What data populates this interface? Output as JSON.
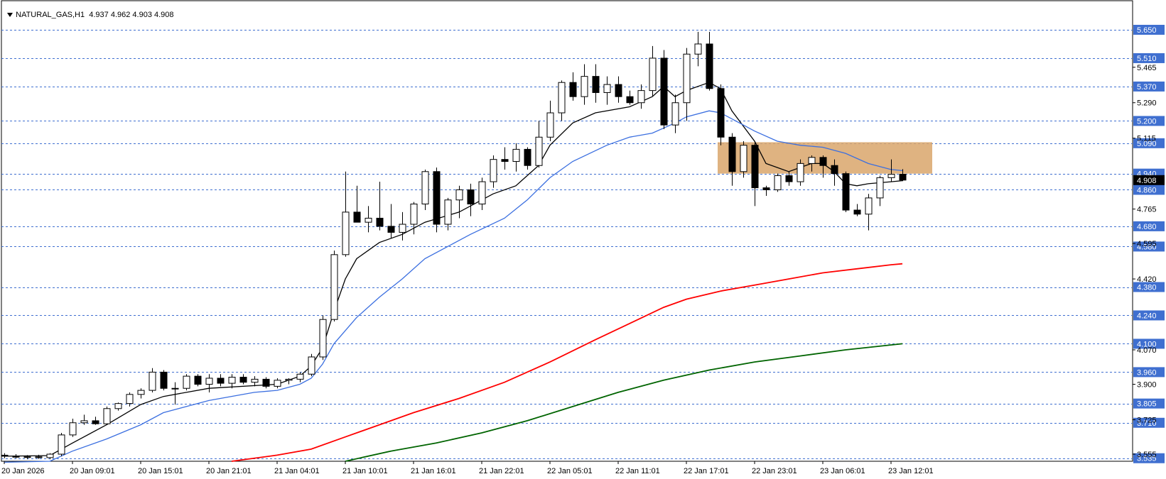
{
  "header": {
    "symbol": "NATURAL_GAS,H1",
    "ohlc": "4.937 4.962 4.903 4.908"
  },
  "colors": {
    "grid_line": "#3f6fd0",
    "label_bg": "#3f6fd0",
    "label_text": "#ffffff",
    "current_price_bg": "#000000",
    "ma_fast": "#000000",
    "ma_medium": "#3b6fe0",
    "ma_slow": "#ff0000",
    "ma_slower": "#006400",
    "zone_fill": "#d9a66b"
  },
  "chart_data": {
    "type": "candlestick",
    "symbol": "NATURAL_GAS,H1",
    "ylim": [
      3.52,
      5.72
    ],
    "price_levels": [
      5.65,
      5.51,
      5.37,
      5.2,
      5.09,
      4.94,
      4.86,
      4.68,
      4.58,
      4.38,
      4.24,
      4.1,
      3.96,
      3.805,
      3.71,
      3.535
    ],
    "price_level_labels": [
      "5.650",
      "5.510",
      "5.370",
      "5.200",
      "5.090",
      "4.940",
      "4.860",
      "4.680",
      "4.580",
      "4.380",
      "4.240",
      "4.100",
      "3.960",
      "3.805",
      "3.710",
      "3.535"
    ],
    "axis_ticks": [
      {
        "value": 5.465,
        "label": "5.465"
      },
      {
        "value": 5.29,
        "label": "5.290"
      },
      {
        "value": 5.115,
        "label": "5.115"
      },
      {
        "value": 4.765,
        "label": "4.765"
      },
      {
        "value": 4.595,
        "label": "4.595"
      },
      {
        "value": 4.42,
        "label": "4.420"
      },
      {
        "value": 4.07,
        "label": "4.070"
      },
      {
        "value": 3.9,
        "label": "3.900"
      },
      {
        "value": 3.725,
        "label": "3.725"
      },
      {
        "value": 3.555,
        "label": "3.555"
      }
    ],
    "current_price": {
      "value": 4.908,
      "label": "4.908"
    },
    "time_labels": [
      {
        "index": 0,
        "label": "20 Jan 2026"
      },
      {
        "index": 6,
        "label": "20 Jan 09:01"
      },
      {
        "index": 12,
        "label": "20 Jan 15:01"
      },
      {
        "index": 18,
        "label": "20 Jan 21:01"
      },
      {
        "index": 24,
        "label": "21 Jan 04:01"
      },
      {
        "index": 30,
        "label": "21 Jan 10:01"
      },
      {
        "index": 36,
        "label": "21 Jan 16:01"
      },
      {
        "index": 42,
        "label": "21 Jan 22:01"
      },
      {
        "index": 48,
        "label": "22 Jan 05:01"
      },
      {
        "index": 54,
        "label": "22 Jan 11:01"
      },
      {
        "index": 60,
        "label": "22 Jan 17:01"
      },
      {
        "index": 66,
        "label": "22 Jan 23:01"
      },
      {
        "index": 72,
        "label": "23 Jan 06:01"
      },
      {
        "index": 78,
        "label": "23 Jan 12:01"
      }
    ],
    "candles": [
      [
        3.55,
        3.56,
        3.535,
        3.545
      ],
      [
        3.545,
        3.555,
        3.535,
        3.54
      ],
      [
        3.54,
        3.55,
        3.53,
        3.542
      ],
      [
        3.542,
        3.552,
        3.532,
        3.538
      ],
      [
        3.538,
        3.56,
        3.53,
        3.555
      ],
      [
        3.555,
        3.66,
        3.545,
        3.65
      ],
      [
        3.65,
        3.73,
        3.64,
        3.71
      ],
      [
        3.71,
        3.75,
        3.7,
        3.72
      ],
      [
        3.72,
        3.74,
        3.7,
        3.705
      ],
      [
        3.705,
        3.79,
        3.7,
        3.78
      ],
      [
        3.78,
        3.81,
        3.77,
        3.805
      ],
      [
        3.805,
        3.86,
        3.79,
        3.85
      ],
      [
        3.85,
        3.88,
        3.83,
        3.87
      ],
      [
        3.87,
        3.98,
        3.86,
        3.96
      ],
      [
        3.96,
        3.97,
        3.87,
        3.88
      ],
      [
        3.88,
        3.91,
        3.8,
        3.88
      ],
      [
        3.88,
        3.95,
        3.87,
        3.94
      ],
      [
        3.94,
        3.95,
        3.89,
        3.9
      ],
      [
        3.9,
        3.95,
        3.86,
        3.93
      ],
      [
        3.93,
        3.95,
        3.89,
        3.905
      ],
      [
        3.905,
        3.95,
        3.88,
        3.935
      ],
      [
        3.935,
        3.95,
        3.9,
        3.91
      ],
      [
        3.91,
        3.94,
        3.89,
        3.925
      ],
      [
        3.925,
        3.935,
        3.88,
        3.89
      ],
      [
        3.89,
        3.93,
        3.88,
        3.92
      ],
      [
        3.92,
        3.93,
        3.9,
        3.925
      ],
      [
        3.925,
        3.96,
        3.91,
        3.95
      ],
      [
        3.95,
        4.05,
        3.94,
        4.035
      ],
      [
        4.035,
        4.24,
        4.02,
        4.22
      ],
      [
        4.22,
        4.56,
        4.21,
        4.54
      ],
      [
        4.54,
        4.95,
        4.53,
        4.75
      ],
      [
        4.75,
        4.88,
        4.7,
        4.7
      ],
      [
        4.7,
        4.78,
        4.65,
        4.72
      ],
      [
        4.72,
        4.9,
        4.66,
        4.68
      ],
      [
        4.68,
        4.79,
        4.62,
        4.65
      ],
      [
        4.65,
        4.75,
        4.61,
        4.69
      ],
      [
        4.69,
        4.8,
        4.64,
        4.79
      ],
      [
        4.79,
        4.96,
        4.76,
        4.95
      ],
      [
        4.95,
        4.97,
        4.65,
        4.69
      ],
      [
        4.69,
        4.82,
        4.66,
        4.81
      ],
      [
        4.81,
        4.88,
        4.72,
        4.86
      ],
      [
        4.86,
        4.89,
        4.73,
        4.79
      ],
      [
        4.79,
        4.92,
        4.76,
        4.9
      ],
      [
        4.9,
        5.03,
        4.87,
        5.01
      ],
      [
        5.01,
        5.07,
        4.96,
        5.0
      ],
      [
        5.0,
        5.09,
        4.95,
        5.06
      ],
      [
        5.06,
        5.07,
        4.96,
        4.98
      ],
      [
        4.98,
        5.2,
        4.97,
        5.12
      ],
      [
        5.12,
        5.3,
        5.1,
        5.24
      ],
      [
        5.24,
        5.4,
        5.2,
        5.39
      ],
      [
        5.39,
        5.44,
        5.3,
        5.32
      ],
      [
        5.32,
        5.48,
        5.28,
        5.42
      ],
      [
        5.42,
        5.48,
        5.29,
        5.34
      ],
      [
        5.34,
        5.42,
        5.28,
        5.38
      ],
      [
        5.38,
        5.42,
        5.29,
        5.32
      ],
      [
        5.32,
        5.35,
        5.28,
        5.29
      ],
      [
        5.29,
        5.38,
        5.26,
        5.35
      ],
      [
        5.35,
        5.57,
        5.32,
        5.51
      ],
      [
        5.51,
        5.55,
        5.16,
        5.18
      ],
      [
        5.18,
        5.33,
        5.14,
        5.29
      ],
      [
        5.29,
        5.56,
        5.2,
        5.53
      ],
      [
        5.53,
        5.64,
        5.47,
        5.58
      ],
      [
        5.58,
        5.64,
        5.35,
        5.36
      ],
      [
        5.36,
        5.38,
        5.08,
        5.12
      ],
      [
        5.12,
        5.14,
        4.88,
        4.95
      ],
      [
        4.95,
        5.1,
        4.92,
        5.08
      ],
      [
        5.08,
        5.1,
        4.78,
        4.87
      ],
      [
        4.87,
        4.88,
        4.83,
        4.86
      ],
      [
        4.86,
        4.94,
        4.85,
        4.93
      ],
      [
        4.93,
        4.95,
        4.88,
        4.9
      ],
      [
        4.9,
        5.01,
        4.88,
        4.99
      ],
      [
        4.99,
        5.03,
        4.95,
        5.02
      ],
      [
        5.02,
        5.03,
        4.92,
        4.98
      ],
      [
        4.98,
        5.01,
        4.88,
        4.94
      ],
      [
        4.94,
        4.95,
        4.75,
        4.76
      ],
      [
        4.76,
        4.79,
        4.73,
        4.74
      ],
      [
        4.74,
        4.84,
        4.66,
        4.82
      ],
      [
        4.82,
        4.93,
        4.78,
        4.92
      ],
      [
        4.92,
        5.01,
        4.9,
        4.937
      ],
      [
        4.937,
        4.962,
        4.903,
        4.908
      ]
    ],
    "zone": {
      "price_low": 4.94,
      "price_high": 5.095,
      "start_index": 63,
      "end_index": 81
    },
    "moving_averages": [
      {
        "color": "#000000",
        "points": [
          [
            0,
            3.545
          ],
          [
            4,
            3.548
          ],
          [
            6,
            3.61
          ],
          [
            9,
            3.7
          ],
          [
            12,
            3.8
          ],
          [
            14,
            3.84
          ],
          [
            18,
            3.88
          ],
          [
            24,
            3.9
          ],
          [
            26,
            3.94
          ],
          [
            27,
            3.99
          ],
          [
            28,
            4.08
          ],
          [
            29,
            4.26
          ],
          [
            30,
            4.42
          ],
          [
            31,
            4.52
          ],
          [
            33,
            4.6
          ],
          [
            35,
            4.64
          ],
          [
            37,
            4.7
          ],
          [
            40,
            4.75
          ],
          [
            43,
            4.84
          ],
          [
            45,
            4.88
          ],
          [
            47,
            4.98
          ],
          [
            48,
            5.08
          ],
          [
            50,
            5.19
          ],
          [
            52,
            5.24
          ],
          [
            55,
            5.27
          ],
          [
            57,
            5.32
          ],
          [
            58,
            5.37
          ],
          [
            59,
            5.32
          ],
          [
            60,
            5.35
          ],
          [
            62,
            5.39
          ],
          [
            63,
            5.36
          ],
          [
            64,
            5.25
          ],
          [
            66,
            5.1
          ],
          [
            67,
            4.99
          ],
          [
            69,
            4.95
          ],
          [
            71,
            4.99
          ],
          [
            72,
            4.99
          ],
          [
            73,
            4.95
          ],
          [
            74,
            4.89
          ],
          [
            75,
            4.88
          ],
          [
            76,
            4.89
          ],
          [
            78,
            4.9
          ],
          [
            79,
            4.905
          ]
        ]
      },
      {
        "color": "#3b6fe0",
        "points": [
          [
            0,
            3.515
          ],
          [
            4,
            3.52
          ],
          [
            6,
            3.57
          ],
          [
            9,
            3.63
          ],
          [
            12,
            3.7
          ],
          [
            14,
            3.76
          ],
          [
            18,
            3.82
          ],
          [
            22,
            3.86
          ],
          [
            24,
            3.87
          ],
          [
            26,
            3.9
          ],
          [
            27,
            3.93
          ],
          [
            28,
            4.0
          ],
          [
            29,
            4.1
          ],
          [
            31,
            4.23
          ],
          [
            33,
            4.33
          ],
          [
            35,
            4.42
          ],
          [
            37,
            4.52
          ],
          [
            39,
            4.58
          ],
          [
            41,
            4.64
          ],
          [
            44,
            4.72
          ],
          [
            46,
            4.81
          ],
          [
            48,
            4.92
          ],
          [
            50,
            5.0
          ],
          [
            53,
            5.08
          ],
          [
            55,
            5.12
          ],
          [
            57,
            5.14
          ],
          [
            59,
            5.19
          ],
          [
            60,
            5.22
          ],
          [
            62,
            5.25
          ],
          [
            63,
            5.24
          ],
          [
            65,
            5.18
          ],
          [
            66,
            5.15
          ],
          [
            68,
            5.1
          ],
          [
            70,
            5.08
          ],
          [
            72,
            5.07
          ],
          [
            74,
            5.04
          ],
          [
            76,
            4.99
          ],
          [
            78,
            4.96
          ],
          [
            79,
            4.955
          ]
        ]
      },
      {
        "color": "#ff0000",
        "points": [
          [
            20,
            3.52
          ],
          [
            24,
            3.55
          ],
          [
            27,
            3.58
          ],
          [
            30,
            3.64
          ],
          [
            33,
            3.7
          ],
          [
            36,
            3.76
          ],
          [
            40,
            3.83
          ],
          [
            44,
            3.91
          ],
          [
            48,
            4.01
          ],
          [
            52,
            4.12
          ],
          [
            55,
            4.2
          ],
          [
            58,
            4.28
          ],
          [
            60,
            4.32
          ],
          [
            63,
            4.36
          ],
          [
            66,
            4.39
          ],
          [
            69,
            4.42
          ],
          [
            72,
            4.45
          ],
          [
            75,
            4.47
          ],
          [
            78,
            4.49
          ],
          [
            79,
            4.495
          ]
        ]
      },
      {
        "color": "#006400",
        "points": [
          [
            30,
            3.52
          ],
          [
            34,
            3.57
          ],
          [
            38,
            3.61
          ],
          [
            42,
            3.66
          ],
          [
            46,
            3.72
          ],
          [
            50,
            3.79
          ],
          [
            54,
            3.86
          ],
          [
            58,
            3.92
          ],
          [
            62,
            3.97
          ],
          [
            66,
            4.01
          ],
          [
            70,
            4.04
          ],
          [
            74,
            4.07
          ],
          [
            79,
            4.1
          ]
        ]
      }
    ]
  }
}
